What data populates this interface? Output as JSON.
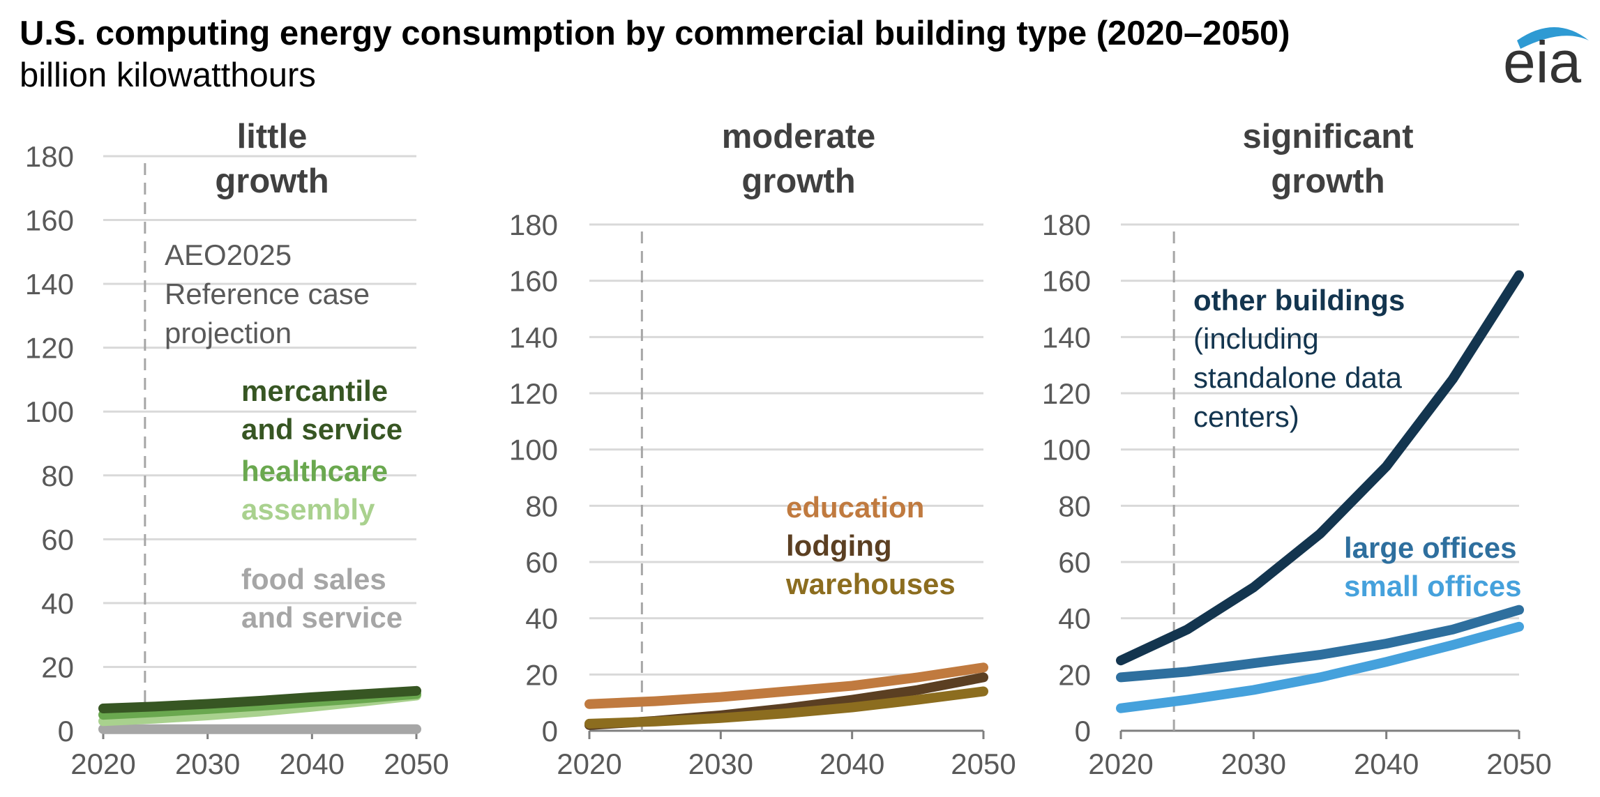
{
  "title": "U.S. computing energy consumption by commercial building type (2020–2050)",
  "subtitle": "billion kilowatthours",
  "logo": {
    "text": "eia",
    "color": "#2e9ad3"
  },
  "chart_data": [
    {
      "type": "line",
      "title": "little\ngrowth",
      "title_lines": [
        "little",
        "growth"
      ],
      "xlim": [
        2020,
        2050
      ],
      "ylim": [
        0,
        180
      ],
      "x_ticks": [
        2020,
        2030,
        2040,
        2050
      ],
      "y_ticks": [
        0,
        20,
        40,
        60,
        80,
        100,
        120,
        140,
        160,
        180
      ],
      "projection_start": 2024,
      "annotation": [
        "AEO2025",
        "Reference case",
        "projection"
      ],
      "series": [
        {
          "name": "food sales and service",
          "label_lines": [
            "food sales",
            "and service"
          ],
          "color": "#a6a6a6",
          "x": [
            2020,
            2025,
            2030,
            2035,
            2040,
            2045,
            2050
          ],
          "values": [
            0.5,
            0.5,
            0.5,
            0.5,
            0.5,
            0.5,
            0.5
          ]
        },
        {
          "name": "assembly",
          "label_lines": [
            "assembly"
          ],
          "color": "#a9d18e",
          "x": [
            2020,
            2025,
            2030,
            2035,
            2040,
            2045,
            2050
          ],
          "values": [
            3,
            3.8,
            4.8,
            6,
            7.5,
            9.2,
            11
          ]
        },
        {
          "name": "healthcare",
          "label_lines": [
            "healthcare"
          ],
          "color": "#6aa84f",
          "x": [
            2020,
            2025,
            2030,
            2035,
            2040,
            2045,
            2050
          ],
          "values": [
            5,
            5.8,
            6.8,
            7.8,
            9,
            10.2,
            11.5
          ]
        },
        {
          "name": "mercantile and service",
          "label_lines": [
            "mercantile",
            "and service"
          ],
          "color": "#375623",
          "x": [
            2020,
            2025,
            2030,
            2035,
            2040,
            2045,
            2050
          ],
          "values": [
            7,
            7.6,
            8.4,
            9.4,
            10.5,
            11.5,
            12.5
          ]
        }
      ]
    },
    {
      "type": "line",
      "title": "moderate\ngrowth",
      "title_lines": [
        "moderate",
        "growth"
      ],
      "xlim": [
        2020,
        2050
      ],
      "ylim": [
        0,
        180
      ],
      "x_ticks": [
        2020,
        2030,
        2040,
        2050
      ],
      "y_ticks": [
        0,
        20,
        40,
        60,
        80,
        100,
        120,
        140,
        160,
        180
      ],
      "projection_start": 2024,
      "series": [
        {
          "name": "education",
          "label_lines": [
            "education"
          ],
          "color": "#c07a3f",
          "x": [
            2020,
            2025,
            2030,
            2035,
            2040,
            2045,
            2050
          ],
          "values": [
            9.5,
            10.5,
            12,
            14,
            16,
            19,
            22.5
          ]
        },
        {
          "name": "lodging",
          "label_lines": [
            "lodging"
          ],
          "color": "#5b3f22",
          "x": [
            2020,
            2025,
            2030,
            2035,
            2040,
            2045,
            2050
          ],
          "values": [
            2,
            3.5,
            5.5,
            8,
            11,
            14.5,
            19
          ]
        },
        {
          "name": "warehouses",
          "label_lines": [
            "warehouses"
          ],
          "color": "#8c6d1f",
          "x": [
            2020,
            2025,
            2030,
            2035,
            2040,
            2045,
            2050
          ],
          "values": [
            2.5,
            3.3,
            4.5,
            6.2,
            8.3,
            11,
            14
          ]
        }
      ]
    },
    {
      "type": "line",
      "title": "significant\ngrowth",
      "title_lines": [
        "significant",
        "growth"
      ],
      "xlim": [
        2020,
        2050
      ],
      "ylim": [
        0,
        180
      ],
      "x_ticks": [
        2020,
        2030,
        2040,
        2050
      ],
      "y_ticks": [
        0,
        20,
        40,
        60,
        80,
        100,
        120,
        140,
        160,
        180
      ],
      "projection_start": 2024,
      "series": [
        {
          "name": "other buildings (including standalone data centers)",
          "label_lines": [
            "other buildings"
          ],
          "sub_lines": [
            "(including",
            "standalone data",
            "centers)"
          ],
          "color": "#13354f",
          "x": [
            2020,
            2025,
            2030,
            2035,
            2040,
            2045,
            2050
          ],
          "values": [
            25,
            36,
            51,
            70,
            94,
            125,
            162
          ]
        },
        {
          "name": "large offices",
          "label_lines": [
            "large offices"
          ],
          "color": "#2e6f9e",
          "x": [
            2020,
            2025,
            2030,
            2035,
            2040,
            2045,
            2050
          ],
          "values": [
            19,
            21,
            24,
            27,
            31,
            36,
            43
          ]
        },
        {
          "name": "small offices",
          "label_lines": [
            "small offices"
          ],
          "color": "#45a1dc",
          "x": [
            2020,
            2025,
            2030,
            2035,
            2040,
            2045,
            2050
          ],
          "values": [
            8,
            11,
            14.5,
            19,
            24.5,
            30.5,
            37
          ]
        }
      ]
    }
  ]
}
